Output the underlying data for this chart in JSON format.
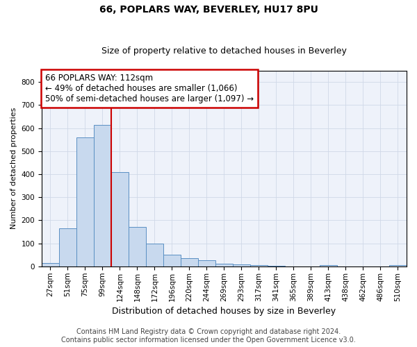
{
  "title": "66, POPLARS WAY, BEVERLEY, HU17 8PU",
  "subtitle": "Size of property relative to detached houses in Beverley",
  "xlabel": "Distribution of detached houses by size in Beverley",
  "ylabel": "Number of detached properties",
  "bar_color": "#c8d9ee",
  "bar_edge_color": "#5a8fc3",
  "grid_color": "#d0d8e8",
  "bg_color": "#eef2fa",
  "vline_color": "#cc0000",
  "vline_x_index": 3,
  "annotation_box_color": "#cc0000",
  "annotation_line1": "66 POPLARS WAY: 112sqm",
  "annotation_line2": "← 49% of detached houses are smaller (1,066)",
  "annotation_line3": "50% of semi-detached houses are larger (1,097) →",
  "annotation_fontsize": 8.5,
  "categories": [
    "27sqm",
    "51sqm",
    "75sqm",
    "99sqm",
    "124sqm",
    "148sqm",
    "172sqm",
    "196sqm",
    "220sqm",
    "244sqm",
    "269sqm",
    "293sqm",
    "317sqm",
    "341sqm",
    "365sqm",
    "389sqm",
    "413sqm",
    "438sqm",
    "462sqm",
    "486sqm",
    "510sqm"
  ],
  "bar_heights": [
    15,
    165,
    560,
    615,
    410,
    170,
    100,
    50,
    37,
    28,
    12,
    10,
    5,
    4,
    0,
    0,
    5,
    0,
    0,
    0,
    5
  ],
  "ylim": [
    0,
    850
  ],
  "yticks": [
    0,
    100,
    200,
    300,
    400,
    500,
    600,
    700,
    800
  ],
  "footer_text": "Contains HM Land Registry data © Crown copyright and database right 2024.\nContains public sector information licensed under the Open Government Licence v3.0.",
  "title_fontsize": 10,
  "subtitle_fontsize": 9,
  "xlabel_fontsize": 9,
  "ylabel_fontsize": 8,
  "tick_fontsize": 7.5,
  "footer_fontsize": 7
}
